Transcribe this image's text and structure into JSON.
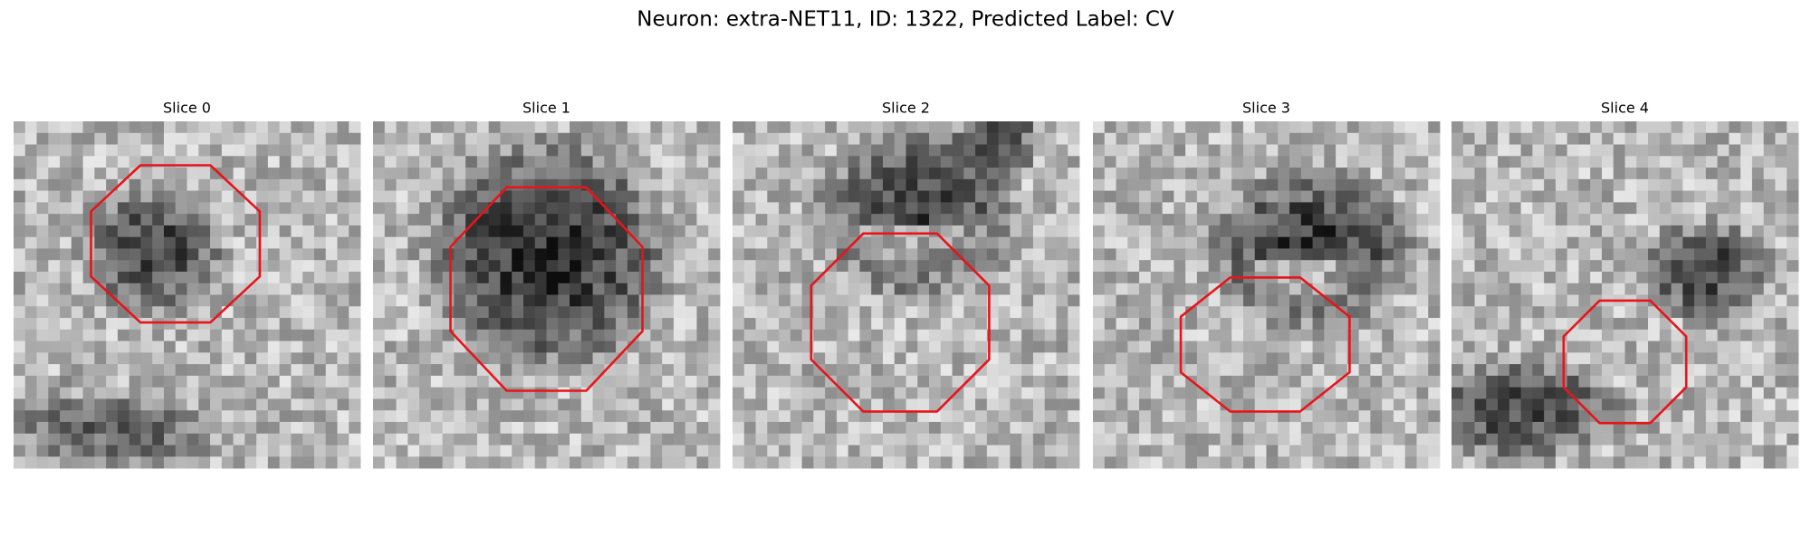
{
  "title": "Neuron: extra-NET11, ID: 1322, Predicted Label: CV",
  "panels": [
    {
      "title": "Slice 0"
    },
    {
      "title": "Slice 1"
    },
    {
      "title": "Slice 2"
    },
    {
      "title": "Slice 3"
    },
    {
      "title": "Slice 4"
    }
  ]
}
